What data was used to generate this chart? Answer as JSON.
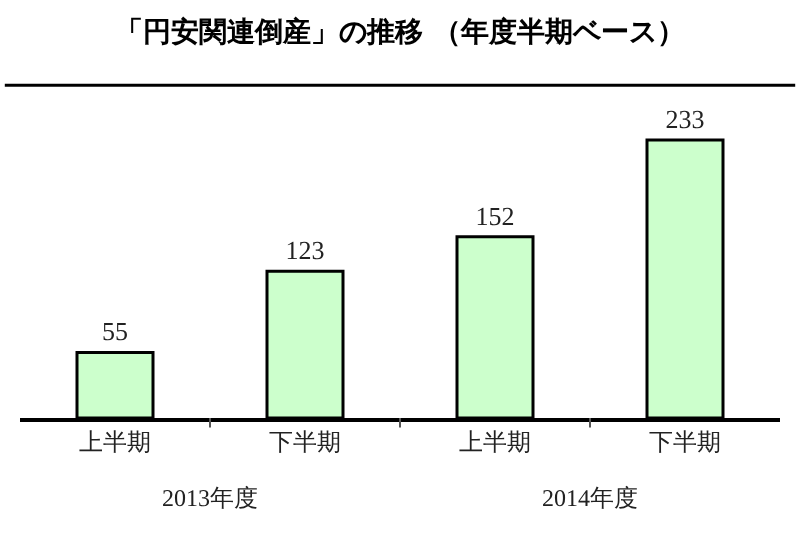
{
  "chart_data": {
    "type": "bar",
    "title": "「円安関連倒産」の推移 （年度半期ベース）",
    "categories": [
      "上半期",
      "下半期",
      "上半期",
      "下半期"
    ],
    "values": [
      55,
      123,
      152,
      233
    ],
    "color": "#ccffcc",
    "data_labels": true,
    "annotations": [
      "2013年度",
      "2014年度"
    ]
  }
}
